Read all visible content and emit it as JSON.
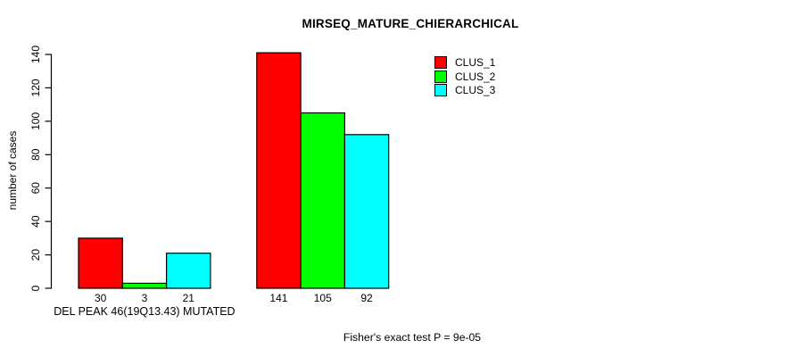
{
  "title": "MIRSEQ_MATURE_CHIERARCHICAL",
  "chart_data": {
    "type": "bar",
    "title": "MIRSEQ_MATURE_CHIERARCHICAL",
    "ylabel": "number of cases",
    "xlabel": "",
    "categories": [
      "DEL PEAK 46(19Q13.43) MUTATED",
      ""
    ],
    "series": [
      {
        "name": "CLUS_1",
        "color": "#FF0000",
        "values": [
          30,
          141
        ]
      },
      {
        "name": "CLUS_2",
        "color": "#00FF00",
        "values": [
          3,
          105
        ]
      },
      {
        "name": "CLUS_3",
        "color": "#00FFFF",
        "values": [
          21,
          92
        ]
      }
    ],
    "ylim": [
      0,
      140
    ],
    "yticks": [
      0,
      20,
      40,
      60,
      80,
      100,
      120,
      140
    ],
    "grid": false,
    "legend_position": "top-right",
    "bar_border_color": "#000000",
    "annotation": "Fisher's exact test P = 9e-05"
  }
}
